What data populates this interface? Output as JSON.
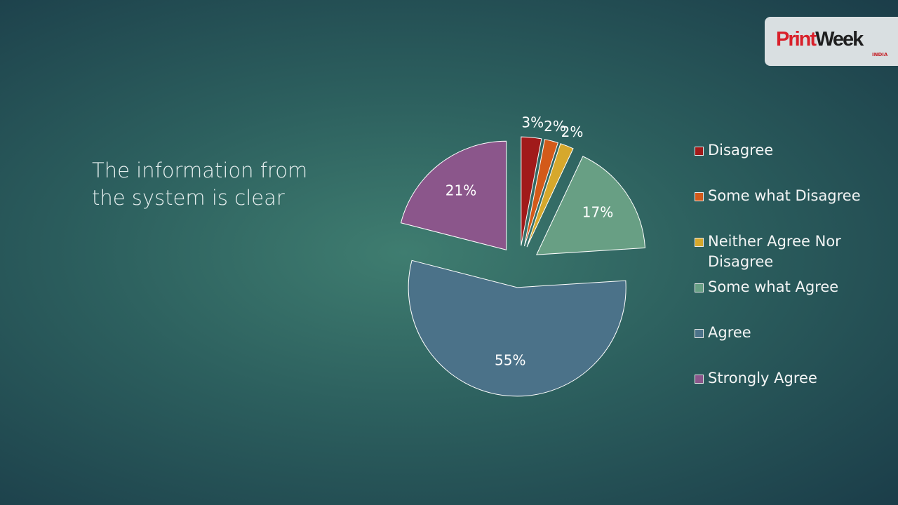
{
  "logo": {
    "part1": "Print",
    "part2": "Week",
    "sub": "INDIA"
  },
  "chart_data": {
    "type": "pie",
    "title": "The information from the system is clear",
    "categories": [
      "Disagree",
      "Some what Disagree",
      "Neither Agree Nor Disagree",
      "Some what Agree",
      "Agree",
      "Strongly Agree"
    ],
    "values": [
      3,
      2,
      2,
      17,
      55,
      21
    ],
    "value_labels": [
      "3%",
      "2%",
      "2%",
      "17%",
      "55%",
      "21%"
    ],
    "colors": [
      "#a11a1a",
      "#d35a1a",
      "#d6a82c",
      "#689f84",
      "#4b7289",
      "#8b568b"
    ],
    "legend": "right"
  }
}
